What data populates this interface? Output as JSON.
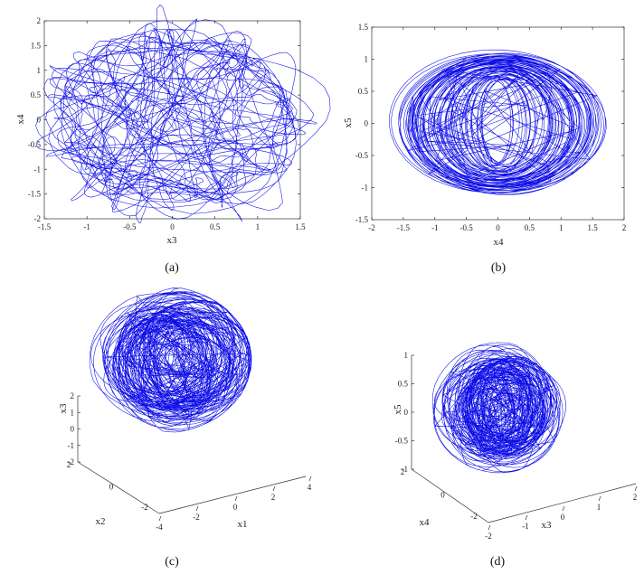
{
  "chart_data": [
    {
      "type": "line",
      "caption": "(a)",
      "xlabel": "x3",
      "ylabel": "x4",
      "xlim": [
        -1.5,
        1.5
      ],
      "ylim": [
        -2,
        2
      ],
      "xticks": [
        "-1.5",
        "-1",
        "-0.5",
        "0",
        "0.5",
        "1",
        "1.5"
      ],
      "yticks": [
        "-2",
        "-1.5",
        "-1",
        "-0.5",
        "0",
        "0.5",
        "1",
        "1.5",
        "2"
      ],
      "series": [
        {
          "x_range": [
            -1.4,
            1.45
          ],
          "y_range": [
            -1.65,
            1.7
          ]
        }
      ]
    },
    {
      "type": "line",
      "caption": "(b)",
      "xlabel": "x4",
      "ylabel": "x5",
      "xlim": [
        -2,
        2
      ],
      "ylim": [
        -1.5,
        1.5
      ],
      "xticks": [
        "-2",
        "-1.5",
        "-1",
        "-0.5",
        "0",
        "0.5",
        "1",
        "1.5",
        "2"
      ],
      "yticks": [
        "-1.5",
        "-1",
        "-0.5",
        "0",
        "0.5",
        "1",
        "1.5"
      ],
      "series": [
        {
          "x_range": [
            -1.65,
            1.7
          ],
          "y_range": [
            -1.1,
            1.1
          ]
        }
      ]
    },
    {
      "type": "line",
      "projection": "3d",
      "caption": "(c)",
      "xlabel": "x1",
      "ylabel": "x2",
      "zlabel": "x3",
      "xticks": [
        "-4",
        "-2",
        "0",
        "2",
        "4"
      ],
      "yticks": [
        "-2",
        "0",
        "2"
      ],
      "zticks": [
        "-2",
        "-1",
        "0",
        "1",
        "2"
      ]
    },
    {
      "type": "line",
      "projection": "3d",
      "caption": "(d)",
      "xlabel": "x3",
      "ylabel": "x4",
      "zlabel": "x5",
      "xticks": [
        "-2",
        "-1",
        "0",
        "1",
        "2"
      ],
      "yticks": [
        "-2",
        "0",
        "2"
      ],
      "zticks": [
        "-1",
        "-0.5",
        "0",
        "0.5",
        "1"
      ]
    }
  ],
  "colors": {
    "trajectory": "#0000e6",
    "axes": "#333333"
  }
}
